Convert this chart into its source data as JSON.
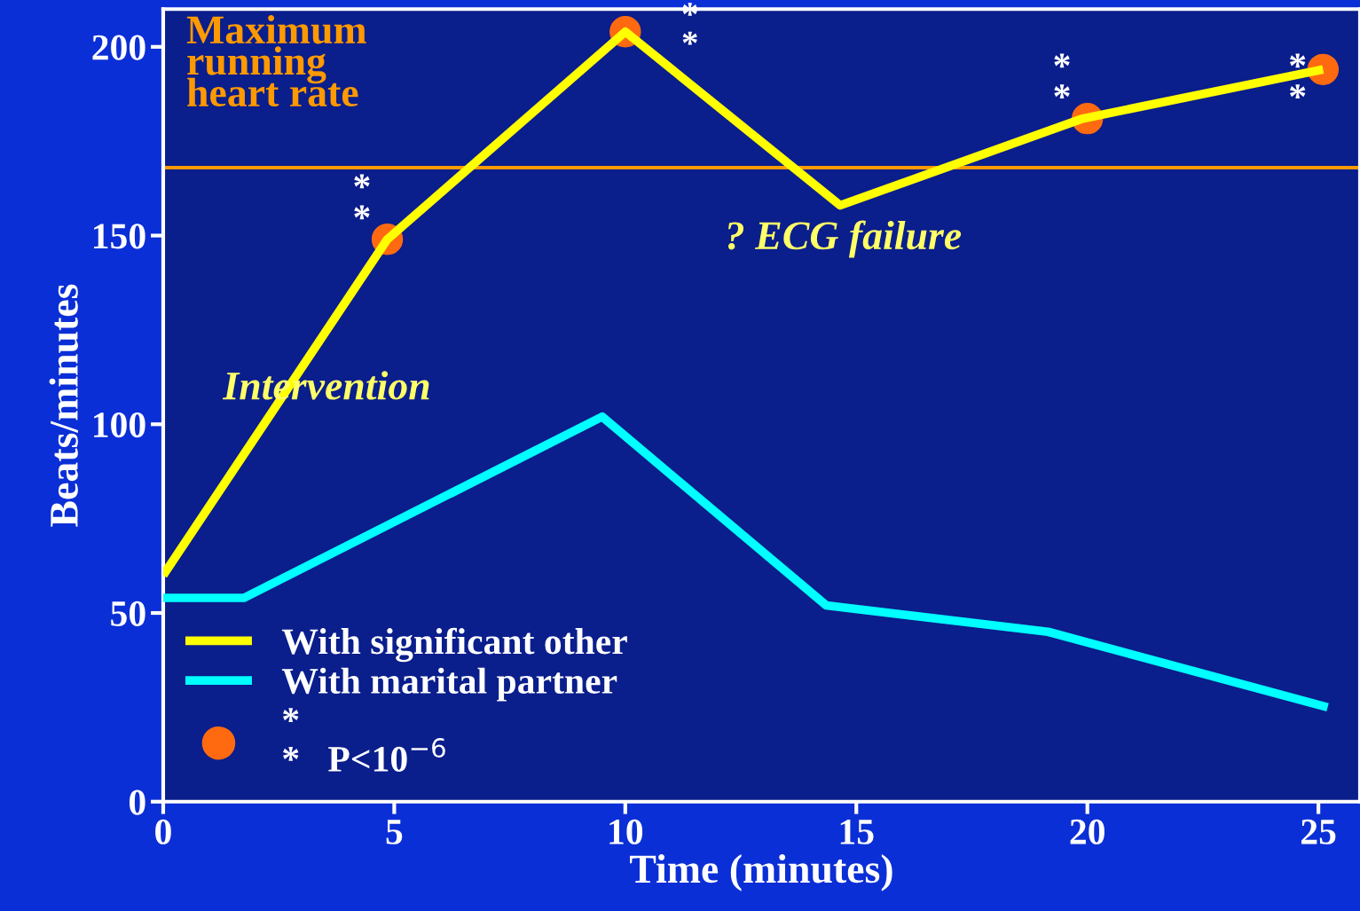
{
  "chart_data": {
    "type": "line",
    "xlabel": "Time (minutes)",
    "ylabel": "Beats/minutes",
    "xlim": [
      0,
      25.9
    ],
    "ylim": [
      0,
      210
    ],
    "xticks": [
      0,
      5,
      10,
      15,
      20,
      25
    ],
    "yticks": [
      0,
      50,
      100,
      150,
      200
    ],
    "grid": false,
    "legend": "bottom left",
    "line_style": "solid",
    "marker": "none",
    "series": [
      {
        "name": "With significant other",
        "color": "#ffff00",
        "x": [
          0,
          4.85,
          10,
          14.65,
          19.9,
          25.1
        ],
        "values": [
          60,
          149,
          204,
          158,
          181,
          194
        ]
      },
      {
        "name": "With marital partner",
        "color": "#00ffff",
        "x": [
          0,
          1.75,
          9.5,
          14.35,
          19.15,
          25.2
        ],
        "values": [
          54,
          54,
          102,
          52,
          45,
          25
        ]
      },
      {
        "name": "*\n*   P<10$^{−6}$",
        "type": "scatter",
        "marker": "circle",
        "color": "#ff6a10",
        "x": [
          4.85,
          10,
          20,
          25.1
        ],
        "values": [
          149,
          204,
          181,
          194
        ]
      }
    ],
    "ref_lines": [
      {
        "axis": "y",
        "value": 168,
        "label": "Maximum\nrunning\nheart rate",
        "color": "#ff9900"
      }
    ],
    "annotations": [
      "Intervention",
      {
        "text": "? ECG failure",
        "x": 14.65,
        "y": 158
      },
      "*\n*",
      "*\n*",
      "*\n*",
      "*\n*"
    ]
  }
}
